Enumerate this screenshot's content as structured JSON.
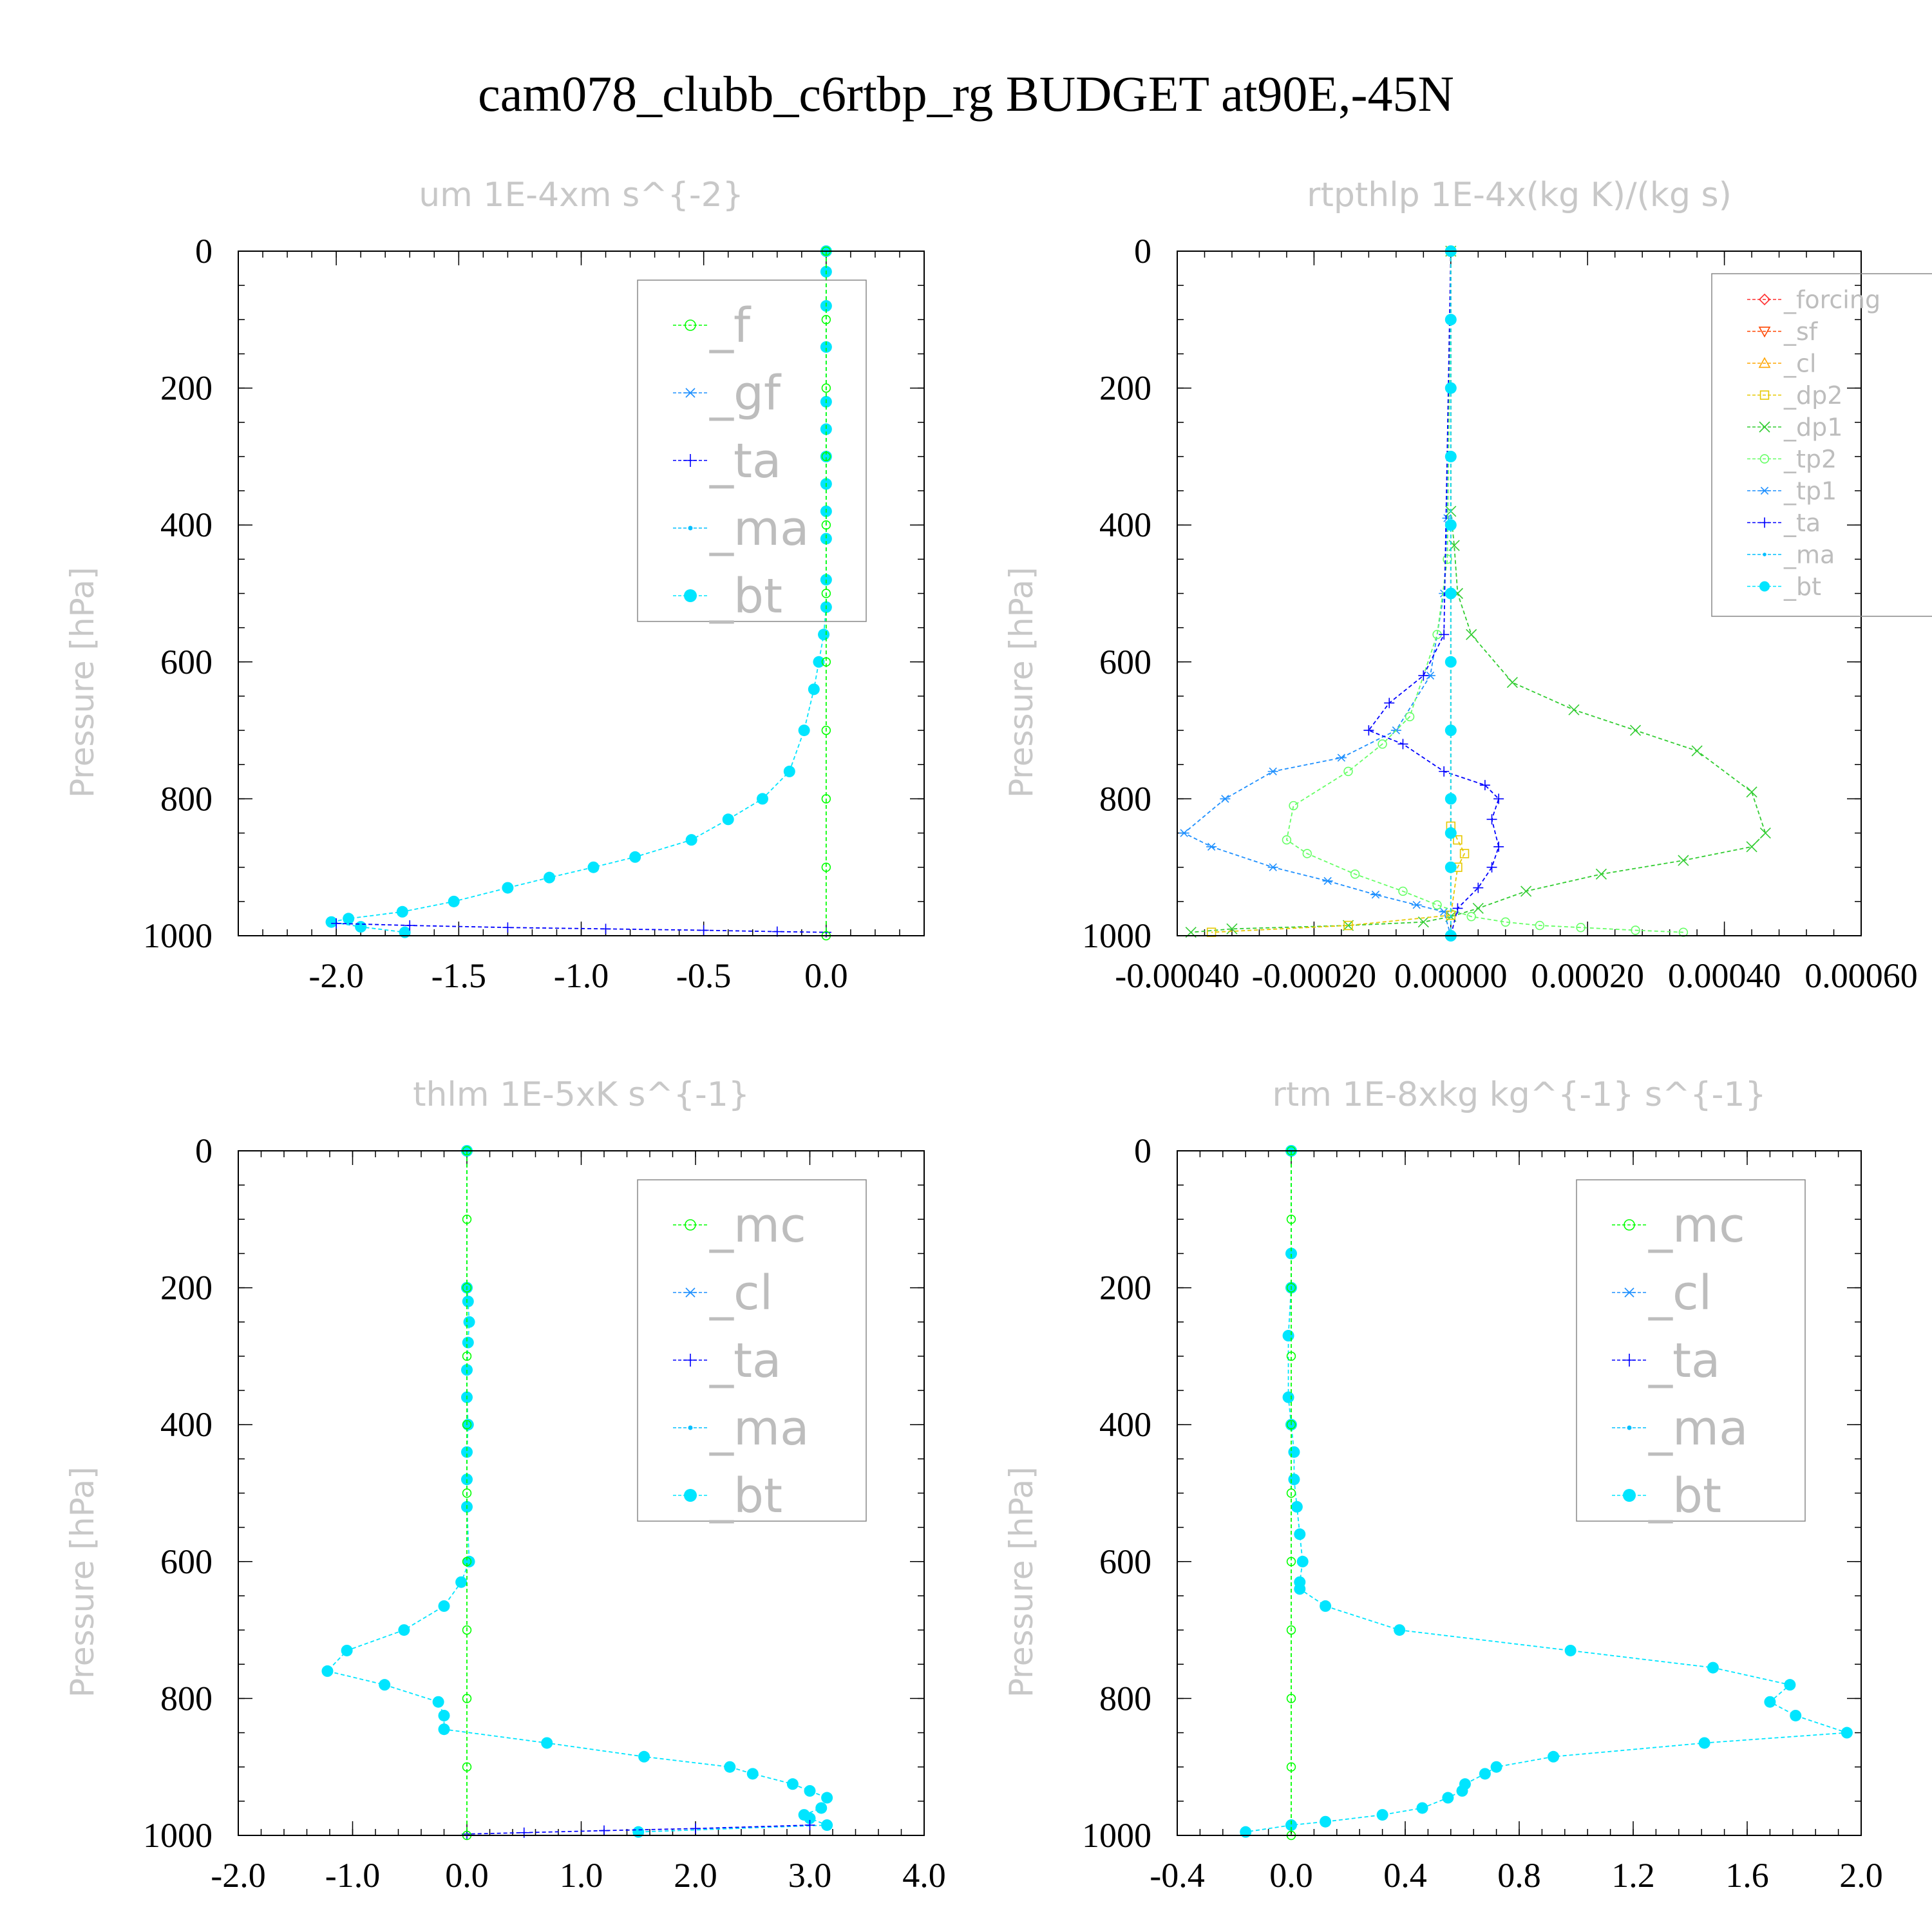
{
  "title": "cam078_clubb_c6rtbp_rg  BUDGET at90E,-45N",
  "colors": {
    "frame": "#000000",
    "panel_title": "#c8c8c8",
    "legend_text": "#bdbdbd"
  },
  "chart_data": [
    {
      "type": "line",
      "title": "um   1E-4xm s^{-2}",
      "ylabel": "Pressure [hPa]",
      "xlabel": "",
      "xlim": [
        -2.4,
        0.4
      ],
      "ylim": [
        1000,
        0
      ],
      "xticks": [
        -2.0,
        -1.5,
        -1.0,
        -0.5,
        0.0
      ],
      "xtick_labels": [
        "-2.0",
        "-1.5",
        "-1.0",
        "-0.5",
        "0.0"
      ],
      "yticks": [
        0,
        200,
        400,
        600,
        800,
        1000
      ],
      "ytick_labels": [
        "0",
        "200",
        "400",
        "600",
        "800",
        "1000"
      ],
      "legend_size": "large",
      "legend": [
        {
          "name": "_f",
          "color": "#00ff00",
          "marker": "circle"
        },
        {
          "name": "_gf",
          "color": "#1e90ff",
          "marker": "asterisk"
        },
        {
          "name": "_ta",
          "color": "#0000ff",
          "marker": "plus"
        },
        {
          "name": "_ma",
          "color": "#00bfff",
          "marker": "dot"
        },
        {
          "name": "_bt",
          "color": "#00e5ff",
          "marker": "filled"
        }
      ],
      "series": [
        {
          "name": "_bt",
          "color": "#00e5ff",
          "marker": "filled",
          "x": [
            0.0,
            0.0,
            0.0,
            0.0,
            0.0,
            0.0,
            0.0,
            0.0,
            0.0,
            0.0,
            0.0,
            0.0,
            -0.01,
            -0.03,
            -0.05,
            -0.09,
            -0.15,
            -0.26,
            -0.4,
            -0.55,
            -0.78,
            -0.95,
            -1.13,
            -1.3,
            -1.52,
            -1.73,
            -1.95,
            -2.02,
            -1.9,
            -1.72
          ],
          "y": [
            0,
            30,
            80,
            140,
            220,
            260,
            300,
            340,
            380,
            420,
            480,
            520,
            560,
            600,
            640,
            700,
            760,
            800,
            830,
            860,
            885,
            900,
            915,
            930,
            950,
            965,
            975,
            980,
            987,
            995
          ]
        },
        {
          "name": "_ta",
          "color": "#0000ff",
          "marker": "plus",
          "x": [
            -2.0,
            -1.7,
            -1.3,
            -0.9,
            -0.5,
            -0.2,
            0.0
          ],
          "y": [
            982,
            985,
            988,
            990,
            992,
            994,
            995
          ]
        },
        {
          "name": "_f",
          "color": "#00ff00",
          "marker": "circle",
          "x": [
            0.0,
            0.0,
            0.0,
            0.0,
            0.0,
            0.0,
            0.0,
            0.0,
            0.0,
            0.0,
            0.0
          ],
          "y": [
            0,
            100,
            200,
            300,
            400,
            500,
            600,
            700,
            800,
            900,
            1000
          ]
        }
      ]
    },
    {
      "type": "line",
      "title": "rtpthlp   1E-4x(kg K)/(kg s)",
      "ylabel": "Pressure [hPa]",
      "xlabel": "",
      "xlim": [
        -0.0004,
        0.0006
      ],
      "ylim": [
        1000,
        0
      ],
      "xticks": [
        -0.0004,
        -0.0002,
        0.0,
        0.0002,
        0.0004,
        0.0006
      ],
      "xtick_labels": [
        "-0.00040",
        "-0.00020",
        "0.00000",
        "0.00020",
        "0.00040",
        "0.00060"
      ],
      "yticks": [
        0,
        200,
        400,
        600,
        800,
        1000
      ],
      "ytick_labels": [
        "0",
        "200",
        "400",
        "600",
        "800",
        "1000"
      ],
      "legend_size": "small",
      "legend": [
        {
          "name": "_forcing",
          "color": "#ff3030",
          "marker": "diamond"
        },
        {
          "name": "_sf",
          "color": "#ff4500",
          "marker": "triangle-down"
        },
        {
          "name": "_cl",
          "color": "#ffa500",
          "marker": "triangle"
        },
        {
          "name": "_dp2",
          "color": "#e6c800",
          "marker": "square"
        },
        {
          "name": "_dp1",
          "color": "#32cd32",
          "marker": "x"
        },
        {
          "name": "_tp2",
          "color": "#66ff66",
          "marker": "circle"
        },
        {
          "name": "_tp1",
          "color": "#1e90ff",
          "marker": "asterisk"
        },
        {
          "name": "_ta",
          "color": "#0000ff",
          "marker": "plus"
        },
        {
          "name": "_ma",
          "color": "#00bfff",
          "marker": "dot"
        },
        {
          "name": "_bt",
          "color": "#00e5ff",
          "marker": "filled"
        }
      ],
      "series": [
        {
          "name": "_dp1",
          "color": "#32cd32",
          "marker": "x",
          "x": [
            0.0,
            0.0,
            5e-06,
            1e-05,
            3e-05,
            9e-05,
            0.00018,
            0.00027,
            0.00036,
            0.00044,
            0.00046,
            0.00044,
            0.00034,
            0.00022,
            0.00011,
            4e-05,
            0.0,
            -4e-05,
            -0.00015,
            -0.00032,
            -0.00038
          ],
          "y": [
            0,
            380,
            430,
            500,
            560,
            630,
            670,
            700,
            730,
            790,
            850,
            870,
            890,
            910,
            935,
            960,
            972,
            980,
            985,
            990,
            995
          ]
        },
        {
          "name": "_tp1",
          "color": "#1e90ff",
          "marker": "asterisk",
          "x": [
            0.0,
            -5e-06,
            -1e-05,
            -3e-05,
            -8e-05,
            -0.00016,
            -0.00026,
            -0.00033,
            -0.00039,
            -0.00035,
            -0.00026,
            -0.00018,
            -0.00011,
            -5e-05,
            -1e-05,
            0.0
          ],
          "y": [
            0,
            390,
            500,
            620,
            700,
            740,
            760,
            800,
            850,
            870,
            900,
            920,
            940,
            955,
            965,
            1000
          ]
        },
        {
          "name": "_tp2",
          "color": "#66ff66",
          "marker": "circle",
          "x": [
            0.0,
            -5e-06,
            -2e-05,
            -6e-05,
            -0.0001,
            -0.00015,
            -0.00023,
            -0.00024,
            -0.00021,
            -0.00014,
            -7e-05,
            -2e-05,
            3e-05,
            8e-05,
            0.00013,
            0.00019,
            0.00027,
            0.00034
          ],
          "y": [
            0,
            450,
            560,
            680,
            720,
            760,
            810,
            860,
            880,
            910,
            935,
            955,
            972,
            980,
            985,
            988,
            992,
            995
          ]
        },
        {
          "name": "_ta",
          "color": "#0000ff",
          "marker": "plus",
          "x": [
            0.0,
            -1e-05,
            -4e-05,
            -9e-05,
            -0.00012,
            -7e-05,
            -1e-05,
            5e-05,
            7e-05,
            6e-05,
            7e-05,
            6e-05,
            4e-05,
            1e-05,
            0.0
          ],
          "y": [
            0,
            560,
            620,
            660,
            700,
            720,
            760,
            780,
            800,
            830,
            870,
            900,
            930,
            960,
            1000
          ]
        },
        {
          "name": "_dp2",
          "color": "#e6c800",
          "marker": "square",
          "x": [
            0.0,
            0.0,
            1e-05,
            2e-05,
            1e-05,
            0.0,
            -0.00015,
            -0.00035
          ],
          "y": [
            0,
            840,
            860,
            880,
            900,
            970,
            985,
            995
          ]
        },
        {
          "name": "_forcing",
          "color": "#ff3030",
          "marker": "diamond",
          "x": [
            0.0,
            0.0
          ],
          "y": [
            0,
            1000
          ]
        },
        {
          "name": "_bt",
          "color": "#00e5ff",
          "marker": "filled",
          "x": [
            0.0,
            0.0,
            0.0,
            0.0,
            0.0,
            0.0,
            0.0,
            0.0,
            0.0,
            0.0,
            0.0,
            0.0
          ],
          "y": [
            0,
            100,
            200,
            300,
            400,
            500,
            600,
            700,
            800,
            850,
            900,
            1000
          ]
        }
      ]
    },
    {
      "type": "line",
      "title": "thlm   1E-5xK s^{-1}",
      "ylabel": "Pressure [hPa]",
      "xlabel": "",
      "xlim": [
        -2.0,
        4.0
      ],
      "ylim": [
        1000,
        0
      ],
      "xticks": [
        -2.0,
        -1.0,
        0.0,
        1.0,
        2.0,
        3.0,
        4.0
      ],
      "xtick_labels": [
        "-2.0",
        "-1.0",
        "0.0",
        "1.0",
        "2.0",
        "3.0",
        "4.0"
      ],
      "yticks": [
        0,
        200,
        400,
        600,
        800,
        1000
      ],
      "ytick_labels": [
        "0",
        "200",
        "400",
        "600",
        "800",
        "1000"
      ],
      "legend_size": "large",
      "legend": [
        {
          "name": "_mc",
          "color": "#00ff00",
          "marker": "circle"
        },
        {
          "name": "_cl",
          "color": "#1e90ff",
          "marker": "asterisk"
        },
        {
          "name": "_ta",
          "color": "#0000ff",
          "marker": "plus"
        },
        {
          "name": "_ma",
          "color": "#00bfff",
          "marker": "dot"
        },
        {
          "name": "_bt",
          "color": "#00e5ff",
          "marker": "filled"
        }
      ],
      "series": [
        {
          "name": "_bt",
          "color": "#00e5ff",
          "marker": "filled",
          "x": [
            0.0,
            0.0,
            0.01,
            0.02,
            0.01,
            0.0,
            0.0,
            0.01,
            0.0,
            0.0,
            0.0,
            0.02,
            -0.05,
            -0.2,
            -0.55,
            -1.05,
            -1.22,
            -0.72,
            -0.25,
            -0.2,
            -0.2,
            0.7,
            1.55,
            2.3,
            2.5,
            2.85,
            3.0,
            3.15,
            3.1,
            2.95,
            3.0,
            3.15,
            1.5
          ],
          "y": [
            0,
            200,
            220,
            250,
            280,
            320,
            360,
            400,
            440,
            480,
            520,
            600,
            630,
            665,
            700,
            730,
            760,
            780,
            805,
            825,
            845,
            865,
            885,
            900,
            910,
            925,
            935,
            945,
            960,
            970,
            975,
            985,
            995
          ]
        },
        {
          "name": "_ta",
          "color": "#0000ff",
          "marker": "plus",
          "x": [
            3.0,
            2.0,
            1.2,
            0.5,
            0.0
          ],
          "y": [
            985,
            990,
            993,
            996,
            998
          ]
        },
        {
          "name": "_mc",
          "color": "#00ff00",
          "marker": "circle",
          "x": [
            0.0,
            0.0,
            0.0,
            0.0,
            0.0,
            0.0,
            0.0,
            0.0,
            0.0,
            0.0,
            0.0
          ],
          "y": [
            0,
            100,
            200,
            300,
            400,
            500,
            600,
            700,
            800,
            900,
            1000
          ]
        }
      ]
    },
    {
      "type": "line",
      "title": "rtm   1E-8xkg kg^{-1} s^{-1}",
      "ylabel": "Pressure [hPa]",
      "xlabel": "",
      "xlim": [
        -0.4,
        2.0
      ],
      "ylim": [
        1000,
        0
      ],
      "xticks": [
        -0.4,
        0.0,
        0.4,
        0.8,
        1.2,
        1.6,
        2.0
      ],
      "xtick_labels": [
        "-0.4",
        "0.0",
        "0.4",
        "0.8",
        "1.2",
        "1.6",
        "2.0"
      ],
      "yticks": [
        0,
        200,
        400,
        600,
        800,
        1000
      ],
      "ytick_labels": [
        "0",
        "200",
        "400",
        "600",
        "800",
        "1000"
      ],
      "legend_size": "large",
      "legend": [
        {
          "name": "_mc",
          "color": "#00ff00",
          "marker": "circle"
        },
        {
          "name": "_cl",
          "color": "#1e90ff",
          "marker": "asterisk"
        },
        {
          "name": "_ta",
          "color": "#0000ff",
          "marker": "plus"
        },
        {
          "name": "_ma",
          "color": "#00bfff",
          "marker": "dot"
        },
        {
          "name": "_bt",
          "color": "#00e5ff",
          "marker": "filled"
        }
      ],
      "series": [
        {
          "name": "_bt",
          "color": "#00e5ff",
          "marker": "filled",
          "x": [
            0.0,
            0.0,
            0.0,
            -0.01,
            -0.01,
            0.0,
            0.01,
            0.01,
            0.02,
            0.03,
            0.04,
            0.03,
            0.03,
            0.12,
            0.38,
            0.98,
            1.48,
            1.75,
            1.68,
            1.77,
            1.95,
            1.45,
            0.92,
            0.72,
            0.68,
            0.61,
            0.6,
            0.55,
            0.46,
            0.32,
            0.12,
            0.0,
            -0.16
          ],
          "y": [
            0,
            150,
            200,
            270,
            360,
            400,
            440,
            480,
            520,
            560,
            600,
            630,
            640,
            665,
            700,
            730,
            755,
            780,
            805,
            825,
            850,
            865,
            885,
            900,
            910,
            925,
            935,
            945,
            960,
            970,
            980,
            985,
            995
          ]
        },
        {
          "name": "_mc",
          "color": "#00ff00",
          "marker": "circle",
          "x": [
            0.0,
            0.0,
            0.0,
            0.0,
            0.0,
            0.0,
            0.0,
            0.0,
            0.0,
            0.0,
            0.0
          ],
          "y": [
            0,
            100,
            200,
            300,
            400,
            500,
            600,
            700,
            800,
            900,
            1000
          ]
        }
      ]
    }
  ]
}
